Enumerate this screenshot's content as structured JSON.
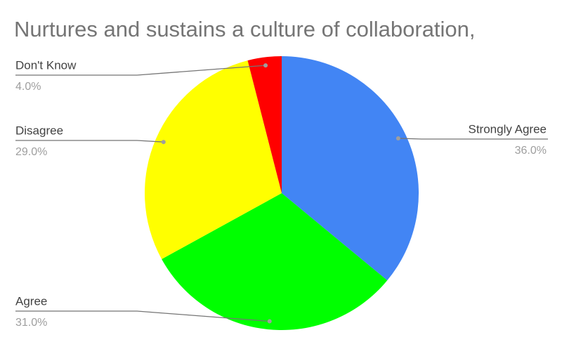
{
  "chart_data": {
    "type": "pie",
    "title": "Nurtures and sustains a culture of collaboration,",
    "categories": [
      "Strongly Agree",
      "Agree",
      "Disagree",
      "Don't Know"
    ],
    "values": [
      36,
      31,
      29,
      4
    ],
    "value_labels": [
      "36.0%",
      "31.0%",
      "29.0%",
      "4.0%"
    ],
    "colors": [
      "#4285f4",
      "#00ff00",
      "#ffff00",
      "#ff0000"
    ]
  }
}
